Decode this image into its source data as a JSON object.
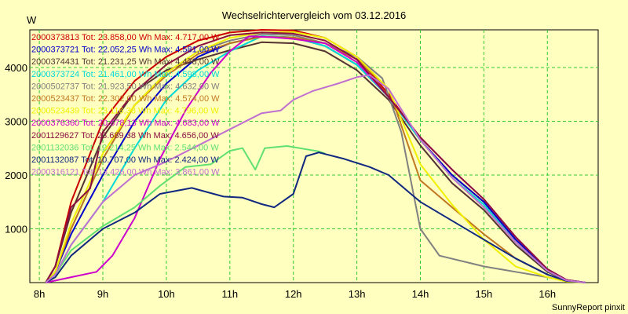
{
  "chart_data": {
    "type": "line",
    "title": "Wechselrichtervergleich vom 03.12.2016",
    "ylabel": "W",
    "xlabel": "",
    "footer": "SunnyReport pinxit",
    "grid": true,
    "legend_position": "top-left",
    "xlim": [
      7.85,
      16.8
    ],
    "ylim": [
      0,
      4700
    ],
    "x_ticks": [
      8,
      9,
      10,
      11,
      12,
      13,
      14,
      15,
      16
    ],
    "x_tick_labels": [
      "8h",
      "9h",
      "10h",
      "11h",
      "12h",
      "13h",
      "14h",
      "15h",
      "16h"
    ],
    "y_ticks": [
      1000,
      2000,
      3000,
      4000
    ],
    "series": [
      {
        "name": "2000373813 Tot: 23.858,00 Wh Max: 4.717,00 W",
        "color": "#cc0000",
        "points": [
          [
            8.1,
            0
          ],
          [
            8.25,
            300
          ],
          [
            8.5,
            1500
          ],
          [
            9,
            3000
          ],
          [
            9.5,
            3750
          ],
          [
            10,
            4200
          ],
          [
            10.5,
            4500
          ],
          [
            11,
            4650
          ],
          [
            11.5,
            4700
          ],
          [
            12,
            4690
          ],
          [
            12.5,
            4550
          ],
          [
            13,
            4200
          ],
          [
            13.5,
            3500
          ],
          [
            14,
            2650
          ],
          [
            14.5,
            2000
          ],
          [
            15,
            1500
          ],
          [
            15.5,
            800
          ],
          [
            16,
            250
          ],
          [
            16.3,
            50
          ],
          [
            16.6,
            0
          ]
        ]
      },
      {
        "name": "2000373721 Tot: 22.052,25 Wh Max: 4.581,00 W",
        "color": "#0000cc",
        "points": [
          [
            8.1,
            0
          ],
          [
            8.25,
            200
          ],
          [
            8.5,
            900
          ],
          [
            9,
            2000
          ],
          [
            9.5,
            3000
          ],
          [
            10,
            3700
          ],
          [
            10.5,
            4200
          ],
          [
            11,
            4450
          ],
          [
            11.5,
            4580
          ],
          [
            12,
            4560
          ],
          [
            12.5,
            4400
          ],
          [
            13,
            4050
          ],
          [
            13.5,
            3450
          ],
          [
            14,
            2650
          ],
          [
            14.5,
            2000
          ],
          [
            15,
            1500
          ],
          [
            15.5,
            800
          ],
          [
            16,
            250
          ],
          [
            16.3,
            50
          ],
          [
            16.6,
            0
          ]
        ]
      },
      {
        "name": "2000374431 Tot: 21.231,25 Wh Max: 4.478,00 W",
        "color": "#553333",
        "points": [
          [
            8.1,
            0
          ],
          [
            8.25,
            300
          ],
          [
            8.5,
            1300
          ],
          [
            9,
            2700
          ],
          [
            9.5,
            3550
          ],
          [
            10,
            3950
          ],
          [
            10.5,
            4150
          ],
          [
            11,
            4320
          ],
          [
            11.5,
            4470
          ],
          [
            12,
            4450
          ],
          [
            12.5,
            4300
          ],
          [
            13,
            3950
          ],
          [
            13.5,
            3400
          ],
          [
            14,
            2550
          ],
          [
            14.5,
            1850
          ],
          [
            15,
            1350
          ],
          [
            15.5,
            700
          ],
          [
            16,
            200
          ],
          [
            16.3,
            40
          ],
          [
            16.6,
            0
          ]
        ]
      },
      {
        "name": "2000373724 Tot: 21.461,00 Wh Max: 4.598,00 W",
        "color": "#00d8d8",
        "points": [
          [
            8.1,
            0
          ],
          [
            8.25,
            150
          ],
          [
            8.5,
            700
          ],
          [
            9,
            1500
          ],
          [
            9.5,
            2500
          ],
          [
            10,
            3400
          ],
          [
            10.5,
            3950
          ],
          [
            11,
            4300
          ],
          [
            11.5,
            4580
          ],
          [
            12,
            4560
          ],
          [
            12.5,
            4400
          ],
          [
            13,
            4050
          ],
          [
            13.5,
            3450
          ],
          [
            14,
            2650
          ],
          [
            14.5,
            1950
          ],
          [
            15,
            1450
          ],
          [
            15.5,
            750
          ],
          [
            16,
            220
          ],
          [
            16.3,
            40
          ],
          [
            16.6,
            0
          ]
        ]
      },
      {
        "name": "2000502737 Tot: 21.923,50 Wh Max: 4.632,00 W",
        "color": "#808080",
        "points": [
          [
            8.1,
            0
          ],
          [
            8.25,
            200
          ],
          [
            8.5,
            1000
          ],
          [
            9,
            2300
          ],
          [
            9.5,
            3300
          ],
          [
            10,
            3900
          ],
          [
            10.5,
            4300
          ],
          [
            11,
            4500
          ],
          [
            11.5,
            4620
          ],
          [
            12,
            4600
          ],
          [
            12.5,
            4450
          ],
          [
            13,
            4200
          ],
          [
            13.4,
            3800
          ],
          [
            13.7,
            2800
          ],
          [
            14,
            1000
          ],
          [
            14.3,
            500
          ],
          [
            15,
            300
          ],
          [
            15.5,
            200
          ],
          [
            16,
            100
          ],
          [
            16.3,
            30
          ],
          [
            16.6,
            0
          ]
        ]
      },
      {
        "name": "2000523437 Tot: 22.302,00 Wh Max: 4.574,00 W",
        "color": "#c07820",
        "points": [
          [
            8.1,
            0
          ],
          [
            8.25,
            200
          ],
          [
            8.5,
            1000
          ],
          [
            9,
            2300
          ],
          [
            9.5,
            3300
          ],
          [
            10,
            3850
          ],
          [
            10.5,
            4250
          ],
          [
            11,
            4450
          ],
          [
            11.5,
            4570
          ],
          [
            12,
            4560
          ],
          [
            12.5,
            4450
          ],
          [
            13,
            4150
          ],
          [
            13.5,
            3600
          ],
          [
            14,
            1900
          ],
          [
            14.5,
            1400
          ],
          [
            15,
            900
          ],
          [
            15.5,
            450
          ],
          [
            16,
            150
          ],
          [
            16.3,
            30
          ],
          [
            16.6,
            0
          ]
        ]
      },
      {
        "name": "2000523439 Tot: 23.116,38 Wh Max: 4.796,00 W",
        "color": "#f0f000",
        "points": [
          [
            8.1,
            0
          ],
          [
            8.25,
            200
          ],
          [
            8.5,
            1100
          ],
          [
            9,
            2400
          ],
          [
            9.5,
            3300
          ],
          [
            10,
            3900
          ],
          [
            10.5,
            4300
          ],
          [
            11,
            4550
          ],
          [
            11.5,
            4650
          ],
          [
            12,
            4660
          ],
          [
            12.5,
            4550
          ],
          [
            13,
            4200
          ],
          [
            13.5,
            3600
          ],
          [
            14,
            2200
          ],
          [
            14.5,
            1450
          ],
          [
            15,
            800
          ],
          [
            15.5,
            300
          ],
          [
            16,
            100
          ],
          [
            16.3,
            20
          ],
          [
            16.6,
            0
          ]
        ]
      },
      {
        "name": "2000376360 Tot: 20.678,13 Wh Max: 4.683,00 W",
        "color": "#cc00cc",
        "points": [
          [
            8.1,
            0
          ],
          [
            8.5,
            100
          ],
          [
            8.9,
            200
          ],
          [
            9.15,
            500
          ],
          [
            9.5,
            1200
          ],
          [
            9.9,
            2300
          ],
          [
            10.3,
            3200
          ],
          [
            10.7,
            3900
          ],
          [
            11,
            4300
          ],
          [
            11.3,
            4580
          ],
          [
            11.7,
            4560
          ],
          [
            12,
            4530
          ],
          [
            12.5,
            4450
          ],
          [
            13,
            4100
          ],
          [
            13.5,
            3450
          ],
          [
            14,
            2700
          ],
          [
            14.5,
            2100
          ],
          [
            15,
            1550
          ],
          [
            15.5,
            850
          ],
          [
            16,
            250
          ],
          [
            16.3,
            50
          ],
          [
            16.6,
            0
          ]
        ]
      },
      {
        "name": "2001129627 Tot: 23.689,38 Wh Max: 4.656,00 W",
        "color": "#8a1040",
        "points": [
          [
            8.1,
            0
          ],
          [
            8.25,
            300
          ],
          [
            8.5,
            1400
          ],
          [
            8.8,
            1750
          ],
          [
            9,
            2800
          ],
          [
            9.5,
            3550
          ],
          [
            10,
            4050
          ],
          [
            10.5,
            4400
          ],
          [
            11,
            4600
          ],
          [
            11.5,
            4650
          ],
          [
            12,
            4630
          ],
          [
            12.5,
            4500
          ],
          [
            13,
            4150
          ],
          [
            13.5,
            3450
          ],
          [
            14,
            2700
          ],
          [
            14.5,
            2100
          ],
          [
            15,
            1550
          ],
          [
            15.5,
            850
          ],
          [
            16,
            250
          ],
          [
            16.3,
            50
          ],
          [
            16.6,
            0
          ]
        ]
      },
      {
        "name": "2001132036 Tot: 12.214,25 Wh Max: 2.544,00 W",
        "color": "#60e070",
        "points": [
          [
            8.1,
            0
          ],
          [
            8.25,
            150
          ],
          [
            8.5,
            600
          ],
          [
            9,
            1050
          ],
          [
            9.5,
            1400
          ],
          [
            9.9,
            1800
          ],
          [
            10.3,
            2150
          ],
          [
            10.7,
            2200
          ],
          [
            11,
            2450
          ],
          [
            11.2,
            2500
          ],
          [
            11.4,
            2100
          ],
          [
            11.55,
            2500
          ],
          [
            11.9,
            2540
          ],
          [
            12.4,
            2440
          ],
          [
            12.5,
            2400
          ]
        ]
      },
      {
        "name": "2001132087 Tot: 10.707,00 Wh Max: 2.424,00 W",
        "color": "#102880",
        "points": [
          [
            8.1,
            0
          ],
          [
            8.25,
            100
          ],
          [
            8.5,
            500
          ],
          [
            9,
            1000
          ],
          [
            9.5,
            1300
          ],
          [
            9.9,
            1650
          ],
          [
            10.4,
            1760
          ],
          [
            10.9,
            1600
          ],
          [
            11.2,
            1580
          ],
          [
            11.5,
            1460
          ],
          [
            11.7,
            1400
          ],
          [
            12,
            1650
          ],
          [
            12.1,
            2000
          ],
          [
            12.2,
            2350
          ],
          [
            12.4,
            2420
          ],
          [
            12.8,
            2300
          ],
          [
            13.2,
            2150
          ],
          [
            13.5,
            2000
          ],
          [
            13.8,
            1700
          ],
          [
            14,
            1500
          ],
          [
            14.5,
            1150
          ],
          [
            15,
            800
          ],
          [
            15.5,
            450
          ],
          [
            16,
            150
          ],
          [
            16.3,
            30
          ],
          [
            16.6,
            0
          ]
        ]
      },
      {
        "name": "2000316121 Tot: 13.426,00 Wh Max: 3.861,00 W",
        "color": "#c070d0",
        "points": [
          [
            8.1,
            0
          ],
          [
            8.25,
            150
          ],
          [
            8.5,
            700
          ],
          [
            9,
            1500
          ],
          [
            9.5,
            2000
          ],
          [
            10,
            2250
          ],
          [
            10.5,
            2550
          ],
          [
            11,
            2850
          ],
          [
            11.5,
            3150
          ],
          [
            11.8,
            3200
          ],
          [
            12,
            3400
          ],
          [
            12.3,
            3560
          ],
          [
            12.7,
            3700
          ],
          [
            13,
            3820
          ],
          [
            13.2,
            3860
          ],
          [
            13.5,
            3600
          ],
          [
            14,
            2650
          ],
          [
            14.5,
            1950
          ],
          [
            15,
            1400
          ],
          [
            15.5,
            750
          ],
          [
            16,
            220
          ],
          [
            16.3,
            40
          ],
          [
            16.6,
            0
          ]
        ]
      }
    ]
  }
}
